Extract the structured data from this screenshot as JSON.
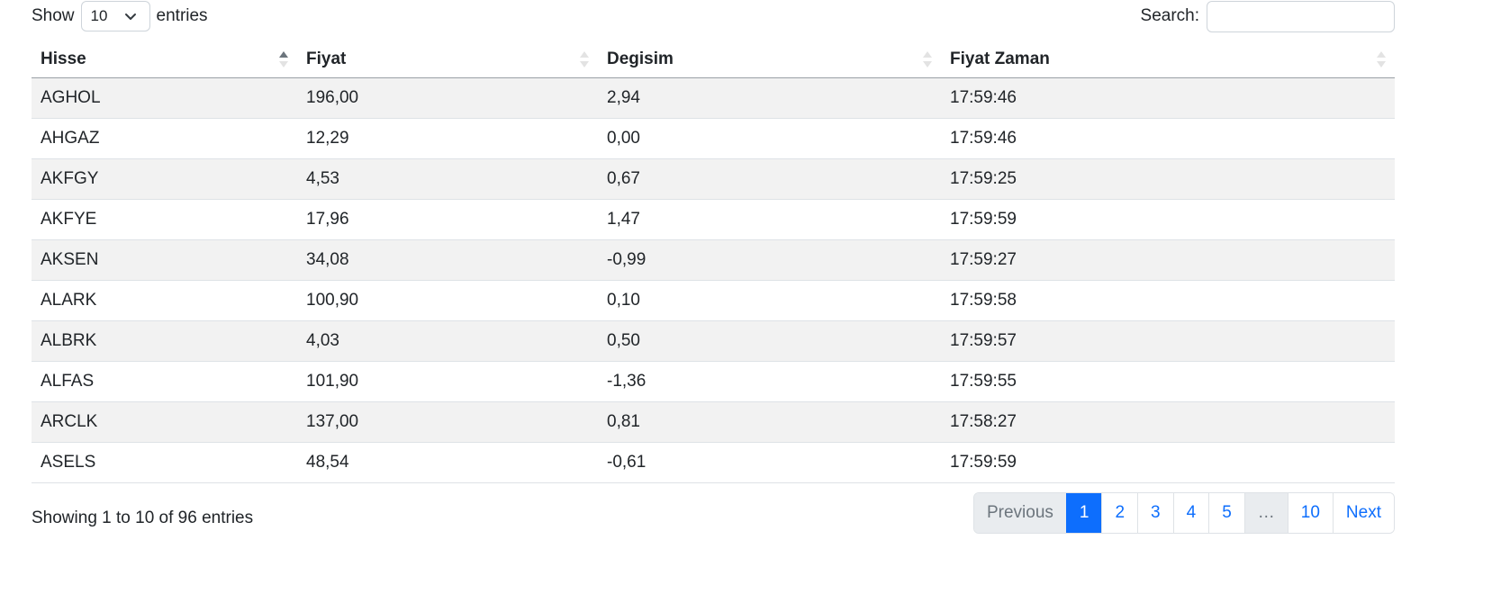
{
  "length": {
    "show_label": "Show",
    "selected": "10",
    "entries_label": "entries"
  },
  "search": {
    "label": "Search:",
    "value": ""
  },
  "table": {
    "headers": [
      "Hisse",
      "Fiyat",
      "Degisim",
      "Fiyat Zaman"
    ],
    "rows": [
      [
        "AGHOL",
        "196,00",
        "2,94",
        "17:59:46"
      ],
      [
        "AHGAZ",
        "12,29",
        "0,00",
        "17:59:46"
      ],
      [
        "AKFGY",
        "4,53",
        "0,67",
        "17:59:25"
      ],
      [
        "AKFYE",
        "17,96",
        "1,47",
        "17:59:59"
      ],
      [
        "AKSEN",
        "34,08",
        "-0,99",
        "17:59:27"
      ],
      [
        "ALARK",
        "100,90",
        "0,10",
        "17:59:58"
      ],
      [
        "ALBRK",
        "4,03",
        "0,50",
        "17:59:57"
      ],
      [
        "ALFAS",
        "101,90",
        "-1,36",
        "17:59:55"
      ],
      [
        "ARCLK",
        "137,00",
        "0,81",
        "17:58:27"
      ],
      [
        "ASELS",
        "48,54",
        "-0,61",
        "17:59:59"
      ]
    ]
  },
  "footer": {
    "info": "Showing 1 to 10 of 96 entries",
    "pagination": {
      "previous": "Previous",
      "pages": [
        "1",
        "2",
        "3",
        "4",
        "5",
        "…",
        "10"
      ],
      "next": "Next"
    }
  },
  "colors": {
    "accent": "#0d6efd",
    "stripe": "#f2f2f2"
  }
}
